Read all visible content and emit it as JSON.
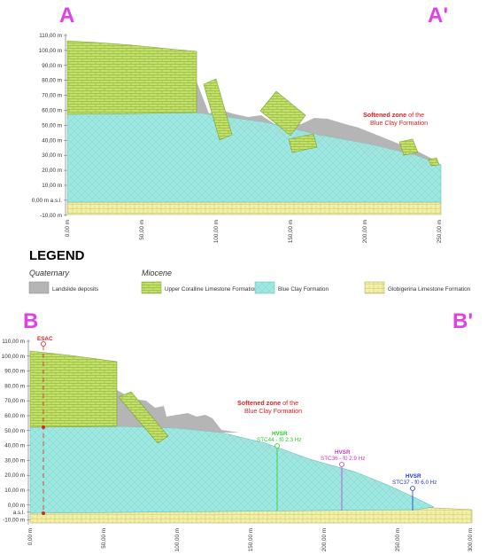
{
  "sectionA": {
    "label_start": "A",
    "label_end": "A'",
    "y_ticks": [
      "110,00 m",
      "100,00 m",
      "90,00 m",
      "80,00 m",
      "70,00 m",
      "60,00 m",
      "50,00 m",
      "40,00 m",
      "30,00 m",
      "20,00 m",
      "10,00 m",
      "0,00 m a.s.l.",
      "-10,00 m"
    ],
    "x_ticks": [
      "0,00 m",
      "50,00 m",
      "100,00 m",
      "150,00 m",
      "200,00 m",
      "250,00 m"
    ],
    "softened_zone_bold": "Softened zone",
    "softened_zone_rest": " of the",
    "softened_zone_line2": "Blue Clay Formation"
  },
  "legend": {
    "title": "LEGEND",
    "quaternary": "Quaternary",
    "miocene": "Miocene",
    "items": [
      {
        "label": "Landslide deposits",
        "color": "#b5b5b5"
      },
      {
        "label": "Upper Coralline Limestone Formation",
        "color": "#c3e16a"
      },
      {
        "label": "Blue Clay Formation",
        "color": "#9fe8e2"
      },
      {
        "label": "Globigerina Limestone Formation",
        "color": "#f3f0a8"
      }
    ]
  },
  "sectionB": {
    "label_start": "B",
    "label_end": "B'",
    "y_ticks": [
      "110,00 m",
      "100,00 m",
      "90,00 m",
      "80,00 m",
      "70,00 m",
      "60,00 m",
      "50,00 m",
      "40,00 m",
      "30,00 m",
      "20,00 m",
      "10,00 m",
      "0,00 m",
      "a.s.l.",
      "-10,00 m"
    ],
    "x_ticks": [
      "0,00 m",
      "50,00 m",
      "100,00 m",
      "150,00 m",
      "200,00 m",
      "250,00 m",
      "300,00 m"
    ],
    "softened_zone_bold": "Softened zone",
    "softened_zone_rest": " of the",
    "softened_zone_line2": "Blue Clay Formation",
    "esac": "ESAC",
    "stations": [
      {
        "type": "HVSR",
        "name": "STC44 - f0 2.3 Hz",
        "color": "#22cc22"
      },
      {
        "type": "HVSR",
        "name": "STC36 - f0 2.9 Hz",
        "color": "#cc33cc"
      },
      {
        "type": "HVSR",
        "name": "STC37 - f0 6.0 Hz",
        "color": "#2233cc"
      }
    ]
  }
}
